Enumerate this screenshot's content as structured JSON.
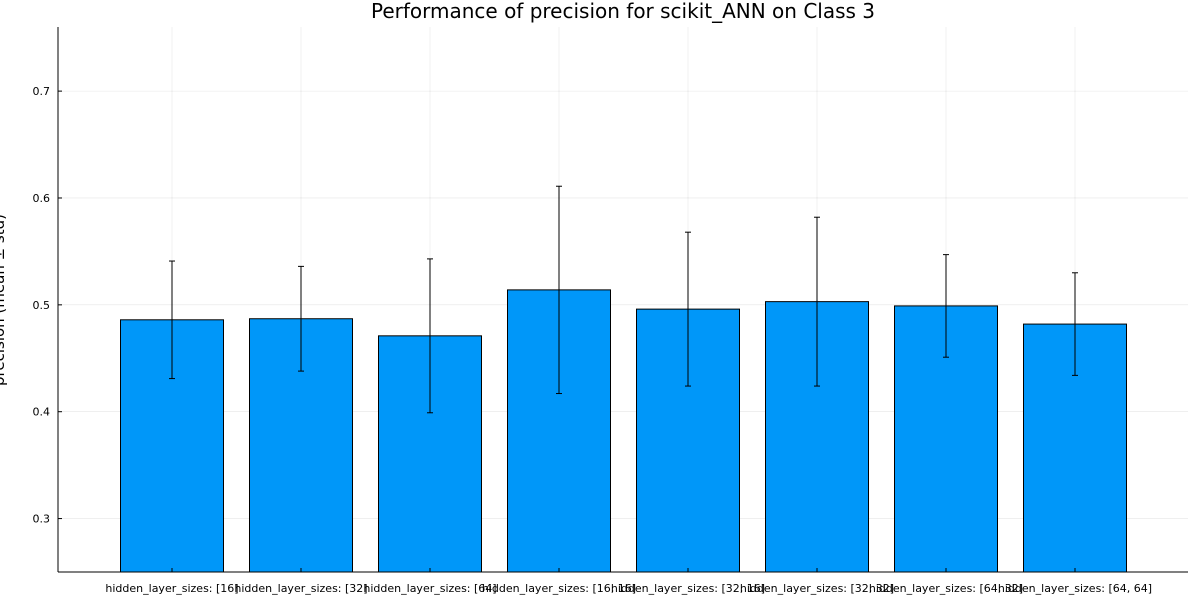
{
  "chart_data": {
    "type": "bar",
    "title": "Performance of precision for scikit_ANN on Class 3",
    "xlabel": "",
    "ylabel": "precision (mean ± std)",
    "ylim": [
      0.25,
      0.76
    ],
    "yticks": [
      0.3,
      0.4,
      0.5,
      0.6,
      0.7
    ],
    "grid": true,
    "legend": "none",
    "bar_color": "#0097f9",
    "categories": [
      "hidden_layer_sizes: [16]",
      "hidden_layer_sizes: [32]",
      "hidden_layer_sizes: [64]",
      "hidden_layer_sizes: [16, 16]",
      "hidden_layer_sizes: [32, 16]",
      "hidden_layer_sizes: [32, 32]",
      "hidden_layer_sizes: [64, 32]",
      "hidden_layer_sizes: [64, 64]"
    ],
    "values": [
      0.486,
      0.487,
      0.471,
      0.514,
      0.496,
      0.503,
      0.499,
      0.482
    ],
    "errors": [
      0.055,
      0.049,
      0.072,
      0.097,
      0.072,
      0.079,
      0.048,
      0.048
    ]
  }
}
